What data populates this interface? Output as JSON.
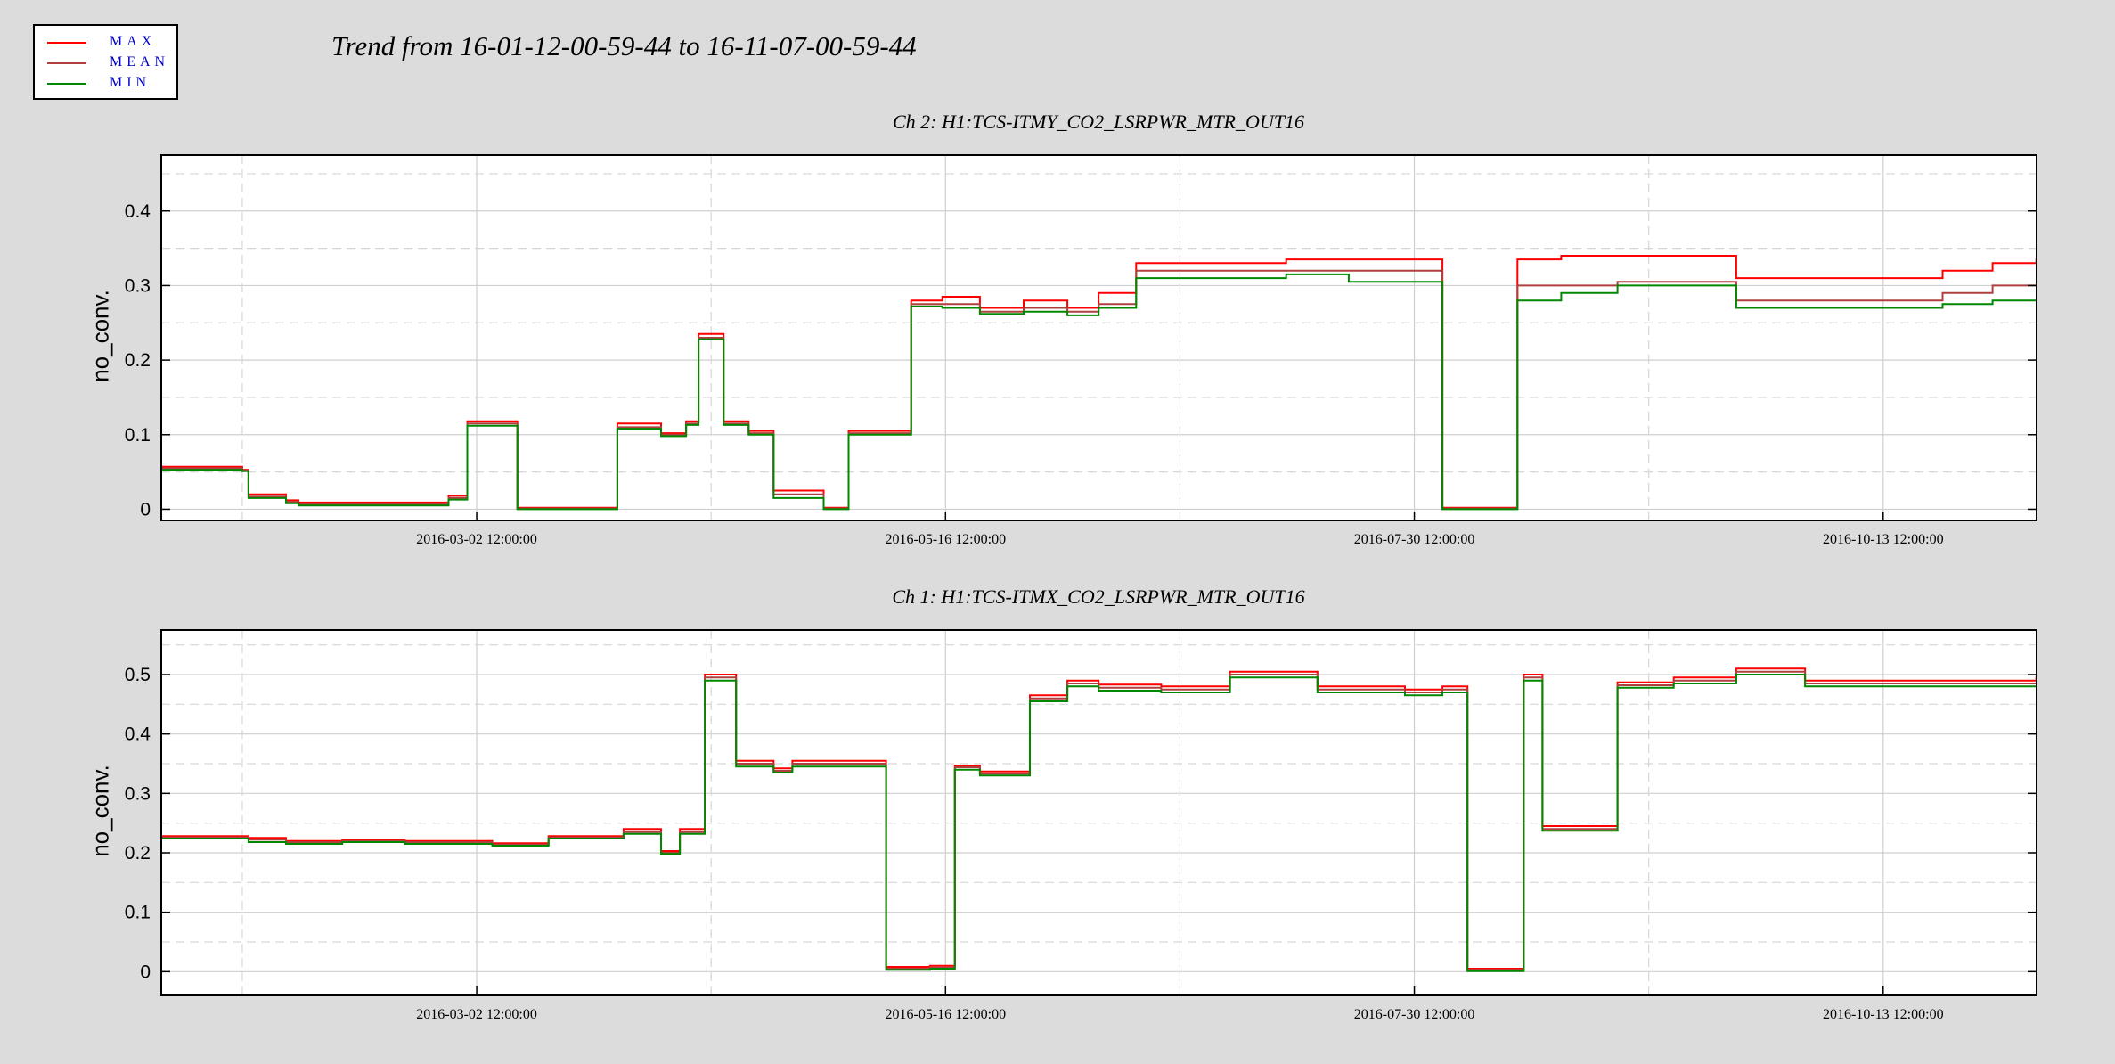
{
  "title": "Trend from 16-01-12-00-59-44 to 16-11-07-00-59-44",
  "legend": [
    {
      "label": "MAX",
      "color": "#ff0000"
    },
    {
      "label": "MEAN",
      "color": "#b04040"
    },
    {
      "label": "MIN",
      "color": "#008800"
    }
  ],
  "chart_data": [
    {
      "type": "line",
      "title": "Ch 2: H1:TCS-ITMY_CO2_LSRPWR_MTR_OUT16",
      "ylabel": "no_conv.",
      "x_range": [
        "2016-01-12 00:59:44",
        "2016-11-07 00:59:44"
      ],
      "x_ticks": [
        "2016-03-02 12:00:00",
        "2016-05-16 12:00:00",
        "2016-07-30 12:00:00",
        "2016-10-13 12:00:00"
      ],
      "y_ticks": [
        0,
        0.1,
        0.2,
        0.3,
        0.4
      ],
      "ylim": [
        -0.015,
        0.475
      ],
      "grid": true,
      "x": [
        "2016-01-12",
        "2016-01-25",
        "2016-01-26",
        "2016-02-01",
        "2016-02-03",
        "2016-02-20",
        "2016-02-27",
        "2016-03-01",
        "2016-03-09",
        "2016-03-23",
        "2016-03-25",
        "2016-04-01",
        "2016-04-05",
        "2016-04-07",
        "2016-04-11",
        "2016-04-15",
        "2016-04-19",
        "2016-04-27",
        "2016-05-01",
        "2016-05-09",
        "2016-05-11",
        "2016-05-16",
        "2016-05-22",
        "2016-05-29",
        "2016-06-05",
        "2016-06-10",
        "2016-06-16",
        "2016-06-26",
        "2016-07-10",
        "2016-07-20",
        "2016-07-29",
        "2016-08-04",
        "2016-08-10",
        "2016-08-16",
        "2016-08-23",
        "2016-09-01",
        "2016-09-20",
        "2016-09-30",
        "2016-10-14",
        "2016-10-23",
        "2016-10-31",
        "2016-11-07"
      ],
      "series": [
        {
          "name": "MAX",
          "values": [
            0.057,
            0.053,
            0.02,
            0.012,
            0.009,
            0.009,
            0.018,
            0.118,
            0.002,
            0.002,
            0.115,
            0.102,
            0.118,
            0.235,
            0.118,
            0.105,
            0.025,
            0.002,
            0.105,
            0.105,
            0.28,
            0.285,
            0.27,
            0.28,
            0.27,
            0.29,
            0.33,
            0.33,
            0.335,
            0.335,
            0.335,
            0.002,
            0.002,
            0.335,
            0.34,
            0.34,
            0.31,
            0.31,
            0.31,
            0.32,
            0.33,
            0.335
          ]
        },
        {
          "name": "MEAN",
          "values": [
            0.055,
            0.052,
            0.017,
            0.01,
            0.007,
            0.007,
            0.015,
            0.115,
            0.001,
            0.001,
            0.11,
            0.1,
            0.115,
            0.23,
            0.115,
            0.102,
            0.02,
            0.001,
            0.102,
            0.102,
            0.275,
            0.275,
            0.265,
            0.27,
            0.265,
            0.275,
            0.32,
            0.32,
            0.32,
            0.32,
            0.32,
            0.001,
            0.001,
            0.3,
            0.3,
            0.305,
            0.28,
            0.28,
            0.28,
            0.29,
            0.3,
            0.3
          ]
        },
        {
          "name": "MIN",
          "values": [
            0.053,
            0.051,
            0.015,
            0.008,
            0.005,
            0.005,
            0.013,
            0.112,
            0.0,
            0.0,
            0.108,
            0.098,
            0.113,
            0.228,
            0.113,
            0.1,
            0.015,
            0.0,
            0.1,
            0.1,
            0.272,
            0.27,
            0.262,
            0.265,
            0.26,
            0.27,
            0.31,
            0.31,
            0.315,
            0.305,
            0.305,
            0.0,
            0.0,
            0.28,
            0.29,
            0.3,
            0.27,
            0.27,
            0.27,
            0.275,
            0.28,
            0.28
          ]
        }
      ]
    },
    {
      "type": "line",
      "title": "Ch 1: H1:TCS-ITMX_CO2_LSRPWR_MTR_OUT16",
      "ylabel": "no_conv.",
      "x_range": [
        "2016-01-12 00:59:44",
        "2016-11-07 00:59:44"
      ],
      "x_ticks": [
        "2016-03-02 12:00:00",
        "2016-05-16 12:00:00",
        "2016-07-30 12:00:00",
        "2016-10-13 12:00:00"
      ],
      "y_ticks": [
        0,
        0.1,
        0.2,
        0.3,
        0.4,
        0.5
      ],
      "ylim": [
        -0.04,
        0.575
      ],
      "grid": true,
      "x": [
        "2016-01-12",
        "2016-01-26",
        "2016-02-01",
        "2016-02-10",
        "2016-02-20",
        "2016-03-01",
        "2016-03-05",
        "2016-03-14",
        "2016-03-21",
        "2016-03-26",
        "2016-04-01",
        "2016-04-04",
        "2016-04-08",
        "2016-04-13",
        "2016-04-19",
        "2016-04-22",
        "2016-05-07",
        "2016-05-14",
        "2016-05-18",
        "2016-05-22",
        "2016-05-30",
        "2016-06-05",
        "2016-06-10",
        "2016-06-20",
        "2016-07-01",
        "2016-07-15",
        "2016-07-29",
        "2016-08-04",
        "2016-08-08",
        "2016-08-12",
        "2016-08-17",
        "2016-08-20",
        "2016-09-01",
        "2016-09-10",
        "2016-09-20",
        "2016-10-01",
        "2016-10-15",
        "2016-11-07"
      ],
      "series": [
        {
          "name": "MAX",
          "values": [
            0.228,
            0.225,
            0.22,
            0.222,
            0.22,
            0.22,
            0.216,
            0.228,
            0.228,
            0.24,
            0.203,
            0.24,
            0.5,
            0.355,
            0.342,
            0.355,
            0.008,
            0.01,
            0.347,
            0.337,
            0.465,
            0.49,
            0.483,
            0.48,
            0.505,
            0.48,
            0.475,
            0.48,
            0.005,
            0.005,
            0.5,
            0.245,
            0.487,
            0.495,
            0.51,
            0.49,
            0.49,
            0.495
          ]
        },
        {
          "name": "MEAN",
          "values": [
            0.226,
            0.222,
            0.218,
            0.22,
            0.218,
            0.218,
            0.214,
            0.226,
            0.226,
            0.235,
            0.2,
            0.235,
            0.495,
            0.35,
            0.338,
            0.35,
            0.005,
            0.007,
            0.344,
            0.333,
            0.46,
            0.485,
            0.478,
            0.475,
            0.5,
            0.475,
            0.47,
            0.475,
            0.003,
            0.003,
            0.495,
            0.24,
            0.482,
            0.49,
            0.505,
            0.485,
            0.485,
            0.485
          ]
        },
        {
          "name": "MIN",
          "values": [
            0.224,
            0.218,
            0.215,
            0.218,
            0.215,
            0.215,
            0.212,
            0.224,
            0.224,
            0.232,
            0.198,
            0.232,
            0.49,
            0.345,
            0.335,
            0.345,
            0.003,
            0.005,
            0.34,
            0.33,
            0.455,
            0.48,
            0.473,
            0.47,
            0.495,
            0.47,
            0.465,
            0.47,
            0.001,
            0.001,
            0.49,
            0.237,
            0.478,
            0.485,
            0.5,
            0.48,
            0.48,
            0.48
          ]
        }
      ]
    }
  ]
}
